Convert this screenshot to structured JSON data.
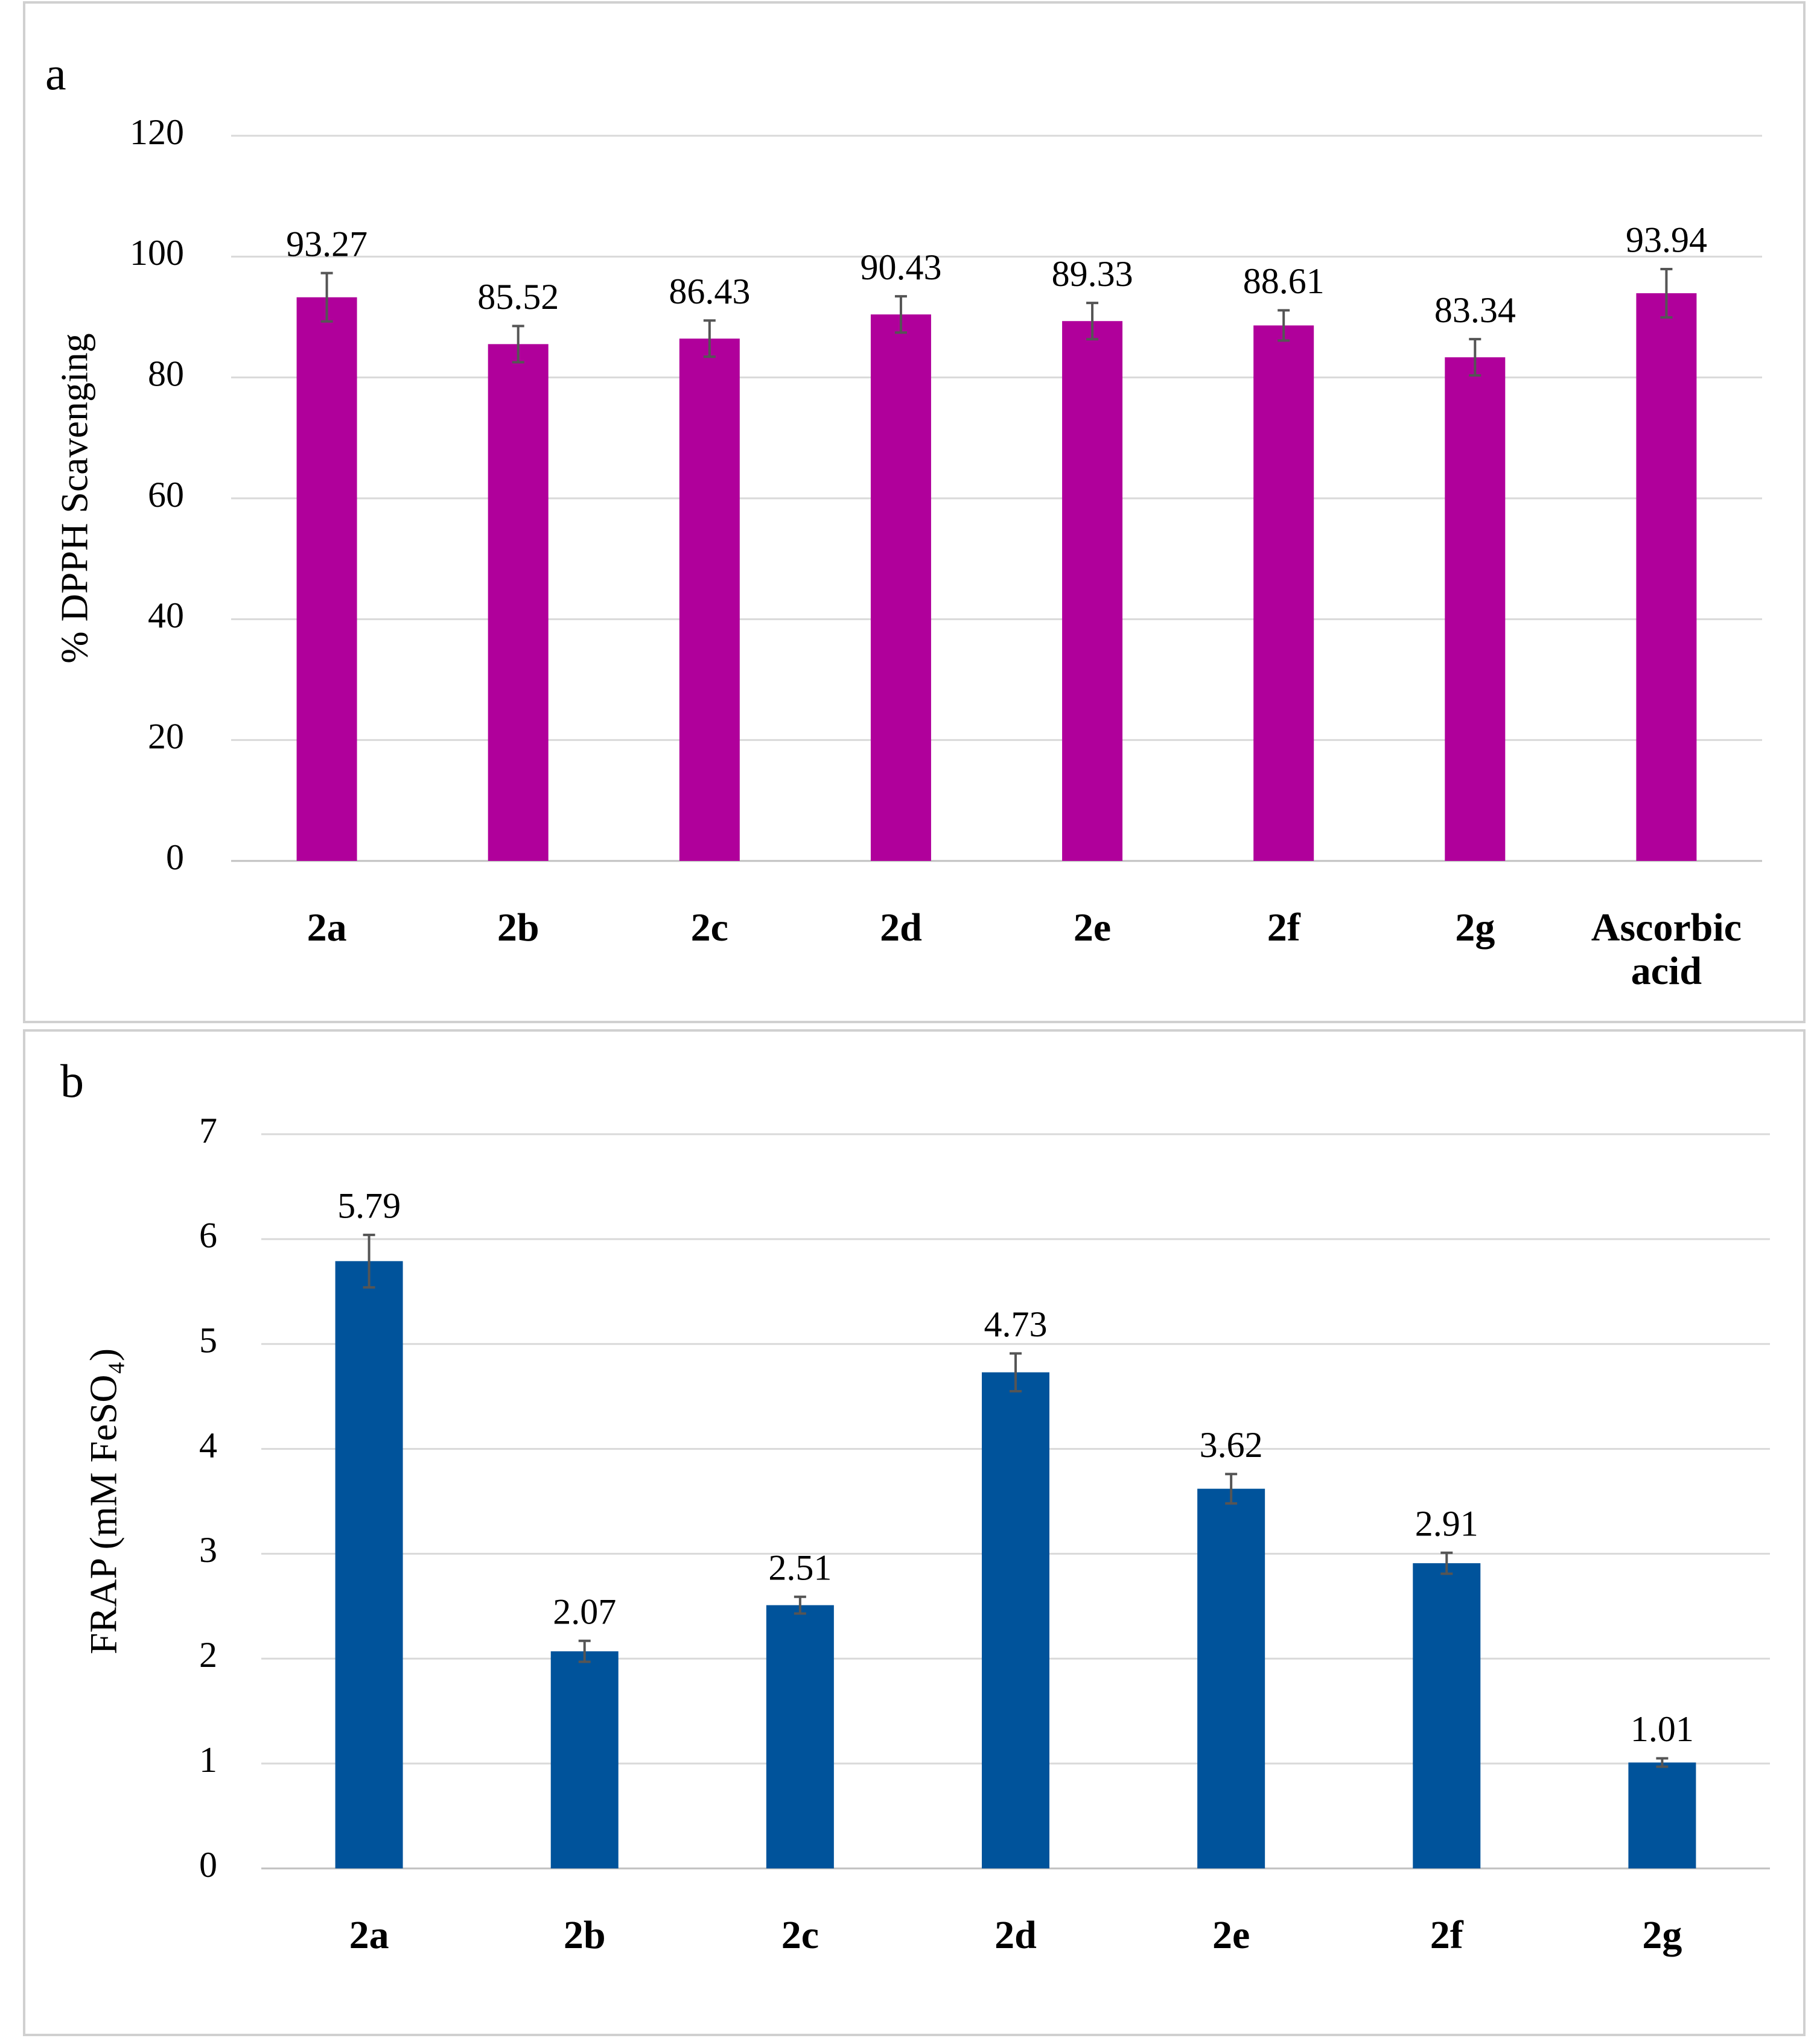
{
  "chart_data": [
    {
      "type": "bar",
      "panel_label": "a",
      "ylabel": "% DPPH Scavenging",
      "categories": [
        "2a",
        "2b",
        "2c",
        "2d",
        "2e",
        "2f",
        "2g",
        "Ascorbic acid"
      ],
      "values": [
        93.27,
        85.52,
        86.43,
        90.43,
        89.33,
        88.61,
        83.34,
        93.94
      ],
      "errors": [
        4,
        3,
        3,
        3,
        3,
        2.5,
        3,
        4
      ],
      "color": "#b0009b",
      "ylim": [
        0,
        120
      ],
      "yticks": [
        0,
        20,
        40,
        60,
        80,
        100,
        120
      ],
      "grid": true
    },
    {
      "type": "bar",
      "panel_label": "b",
      "ylabel": "FRAP (mM FeSO₄)",
      "categories": [
        "2a",
        "2b",
        "2c",
        "2d",
        "2e",
        "2f",
        "2g"
      ],
      "values": [
        5.79,
        2.07,
        2.51,
        4.73,
        3.62,
        2.91,
        1.01
      ],
      "errors": [
        0.25,
        0.1,
        0.08,
        0.18,
        0.14,
        0.1,
        0.04
      ],
      "color": "#00539b",
      "ylim": [
        0,
        7
      ],
      "yticks": [
        0,
        1,
        2,
        3,
        4,
        5,
        6,
        7
      ],
      "grid": true
    }
  ]
}
